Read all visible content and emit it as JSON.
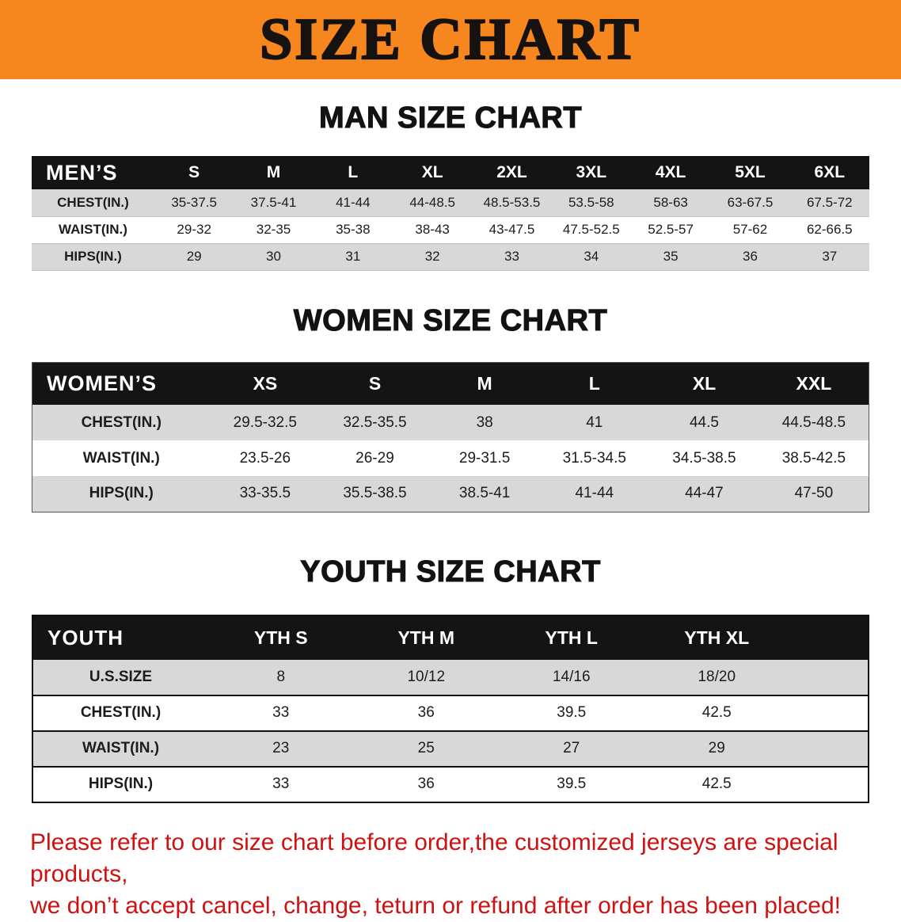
{
  "banner": {
    "title": "SIZE CHART",
    "bg_color": "#f6871f",
    "text_color": "#151210"
  },
  "colors": {
    "header_row_bg": "#141414",
    "stripe_row_bg": "#d8d8d8",
    "note_red": "#d01111"
  },
  "chart_data": [
    {
      "type": "table",
      "title": "MAN SIZE CHART",
      "corner": "MEN’S",
      "columns": [
        "S",
        "M",
        "L",
        "XL",
        "2XL",
        "3XL",
        "4XL",
        "5XL",
        "6XL"
      ],
      "rows": [
        [
          "CHEST(IN.)",
          "35-37.5",
          "37.5-41",
          "41-44",
          "44-48.5",
          "48.5-53.5",
          "53.5-58",
          "58-63",
          "63-67.5",
          "67.5-72"
        ],
        [
          "WAIST(IN.)",
          "29-32",
          "32-35",
          "35-38",
          "38-43",
          "43-47.5",
          "47.5-52.5",
          "52.5-57",
          "57-62",
          "62-66.5"
        ],
        [
          "HIPS(IN.)",
          "29",
          "30",
          "31",
          "32",
          "33",
          "34",
          "35",
          "36",
          "37"
        ]
      ]
    },
    {
      "type": "table",
      "title": "WOMEN SIZE CHART",
      "corner": "WOMEN’S",
      "columns": [
        "XS",
        "S",
        "M",
        "L",
        "XL",
        "XXL"
      ],
      "rows": [
        [
          "CHEST(IN.)",
          "29.5-32.5",
          "32.5-35.5",
          "38",
          "41",
          "44.5",
          "44.5-48.5"
        ],
        [
          "WAIST(IN.)",
          "23.5-26",
          "26-29",
          "29-31.5",
          "31.5-34.5",
          "34.5-38.5",
          "38.5-42.5"
        ],
        [
          "HIPS(IN.)",
          "33-35.5",
          "35.5-38.5",
          "38.5-41",
          "41-44",
          "44-47",
          "47-50"
        ]
      ]
    },
    {
      "type": "table",
      "title": "YOUTH SIZE CHART",
      "corner": "YOUTH",
      "columns": [
        "YTH S",
        "YTH M",
        "YTH L",
        "YTH XL"
      ],
      "rows": [
        [
          "U.S.SIZE",
          "8",
          "10/12",
          "14/16",
          "18/20"
        ],
        [
          "CHEST(IN.)",
          "33",
          "36",
          "39.5",
          "42.5"
        ],
        [
          "WAIST(IN.)",
          "23",
          "25",
          "27",
          "29"
        ],
        [
          "HIPS(IN.)",
          "33",
          "36",
          "39.5",
          "42.5"
        ]
      ]
    }
  ],
  "footer": {
    "lines": [
      "Please refer to our size chart before order,the customized jerseys are special products,",
      "we don’t accept cancel, change, teturn or refund after order has been placed!"
    ]
  }
}
